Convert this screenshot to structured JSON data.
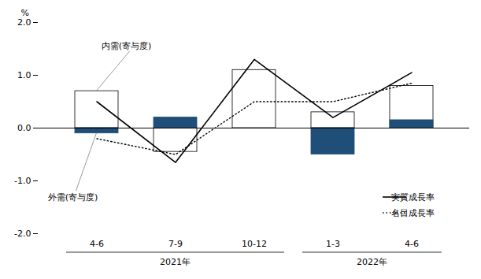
{
  "chart_data": {
    "type": "bar",
    "categories": [
      "4-6",
      "7-9",
      "10-12",
      "1-3",
      "4-6"
    ],
    "groups": [
      {
        "label": "2021年",
        "size": 3
      },
      {
        "label": "2022年",
        "size": 2
      }
    ],
    "series": [
      {
        "name": "内需(寄与度)",
        "type": "bar",
        "color": "white",
        "values": [
          0.7,
          -0.45,
          1.1,
          0.3,
          0.8
        ]
      },
      {
        "name": "外需(寄与度)",
        "type": "bar",
        "color": "#1f4e79",
        "values": [
          -0.1,
          0.2,
          0.0,
          -0.5,
          0.15
        ]
      },
      {
        "name": "実質成長率",
        "type": "line",
        "color": "black",
        "line_style": "solid",
        "values": [
          0.5,
          -0.65,
          1.3,
          0.2,
          1.05
        ]
      },
      {
        "name": "名目成長率",
        "type": "line",
        "color": "black",
        "line_style": "dotted",
        "values": [
          -0.2,
          -0.5,
          0.5,
          0.5,
          0.85
        ]
      }
    ],
    "y_label": "%",
    "ylim": [
      -2.0,
      2.0
    ],
    "yticks": [
      {
        "value": -2.0,
        "label": "-2.0"
      },
      {
        "value": -1.0,
        "label": "-1.0"
      },
      {
        "value": 0.0,
        "label": "0.0"
      },
      {
        "value": 1.0,
        "label": "1.0"
      },
      {
        "value": 2.0,
        "label": "2.0"
      }
    ],
    "grid": false,
    "legend": "lower right"
  }
}
